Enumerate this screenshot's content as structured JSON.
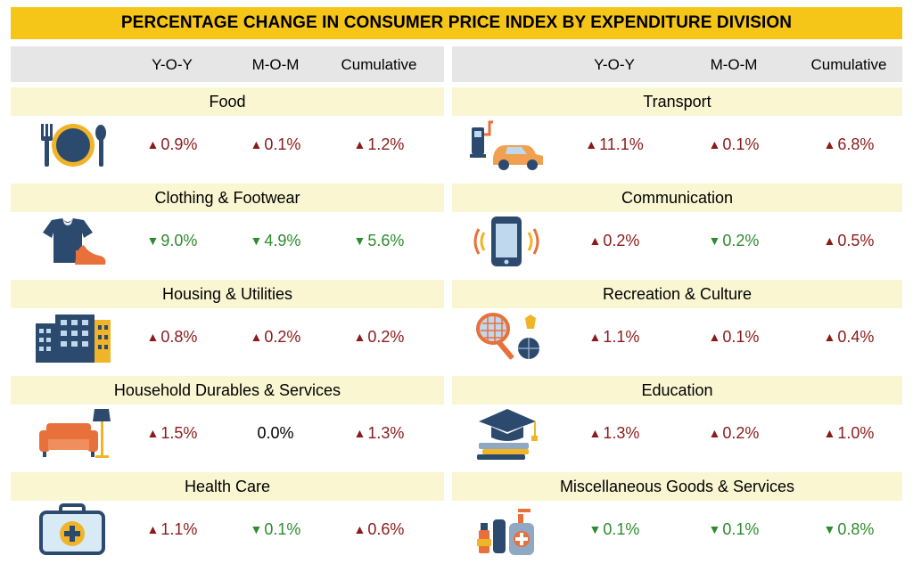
{
  "title": "PERCENTAGE CHANGE IN CONSUMER PRICE INDEX BY EXPENDITURE DIVISION",
  "columns": [
    "Y-O-Y",
    "M-O-M",
    "Cumulative"
  ],
  "colors": {
    "banner": "#F5C518",
    "increase": "#8B1A1A",
    "decrease": "#2E8B2E"
  },
  "chart_data": {
    "type": "table",
    "title": "PERCENTAGE CHANGE IN CONSUMER PRICE INDEX BY EXPENDITURE DIVISION",
    "columns": [
      "Y-O-Y",
      "M-O-M",
      "Cumulative"
    ],
    "rows": [
      {
        "division": "Food",
        "icon": "plate-cutlery-icon",
        "values": [
          {
            "text": "0.9%",
            "dir": "up"
          },
          {
            "text": "0.1%",
            "dir": "up"
          },
          {
            "text": "1.2%",
            "dir": "up"
          }
        ]
      },
      {
        "division": "Clothing & Footwear",
        "icon": "shirt-shoe-icon",
        "values": [
          {
            "text": "9.0%",
            "dir": "down"
          },
          {
            "text": "4.9%",
            "dir": "down"
          },
          {
            "text": "5.6%",
            "dir": "down"
          }
        ]
      },
      {
        "division": "Housing & Utilities",
        "icon": "buildings-icon",
        "values": [
          {
            "text": "0.8%",
            "dir": "up"
          },
          {
            "text": "0.2%",
            "dir": "up"
          },
          {
            "text": "0.2%",
            "dir": "up"
          }
        ]
      },
      {
        "division": "Household Durables & Services",
        "icon": "sofa-lamp-icon",
        "values": [
          {
            "text": "1.5%",
            "dir": "up"
          },
          {
            "text": "0.0%",
            "dir": "flat"
          },
          {
            "text": "1.3%",
            "dir": "up"
          }
        ]
      },
      {
        "division": "Health Care",
        "icon": "medical-kit-icon",
        "values": [
          {
            "text": "1.1%",
            "dir": "up"
          },
          {
            "text": "0.1%",
            "dir": "down"
          },
          {
            "text": "0.6%",
            "dir": "up"
          }
        ]
      },
      {
        "division": "Transport",
        "icon": "fuel-car-icon",
        "values": [
          {
            "text": "11.1%",
            "dir": "up"
          },
          {
            "text": "0.1%",
            "dir": "up"
          },
          {
            "text": "6.8%",
            "dir": "up"
          }
        ]
      },
      {
        "division": "Communication",
        "icon": "mobile-phone-icon",
        "values": [
          {
            "text": "0.2%",
            "dir": "up"
          },
          {
            "text": "0.2%",
            "dir": "down"
          },
          {
            "text": "0.5%",
            "dir": "up"
          }
        ]
      },
      {
        "division": "Recreation & Culture",
        "icon": "racket-ball-icon",
        "values": [
          {
            "text": "1.1%",
            "dir": "up"
          },
          {
            "text": "0.1%",
            "dir": "up"
          },
          {
            "text": "0.4%",
            "dir": "up"
          }
        ]
      },
      {
        "division": "Education",
        "icon": "graduation-books-icon",
        "values": [
          {
            "text": "1.3%",
            "dir": "up"
          },
          {
            "text": "0.2%",
            "dir": "up"
          },
          {
            "text": "1.0%",
            "dir": "up"
          }
        ]
      },
      {
        "division": "Miscellaneous Goods & Services",
        "icon": "cosmetics-icon",
        "values": [
          {
            "text": "0.1%",
            "dir": "down"
          },
          {
            "text": "0.1%",
            "dir": "down"
          },
          {
            "text": "0.8%",
            "dir": "down"
          }
        ]
      }
    ]
  }
}
